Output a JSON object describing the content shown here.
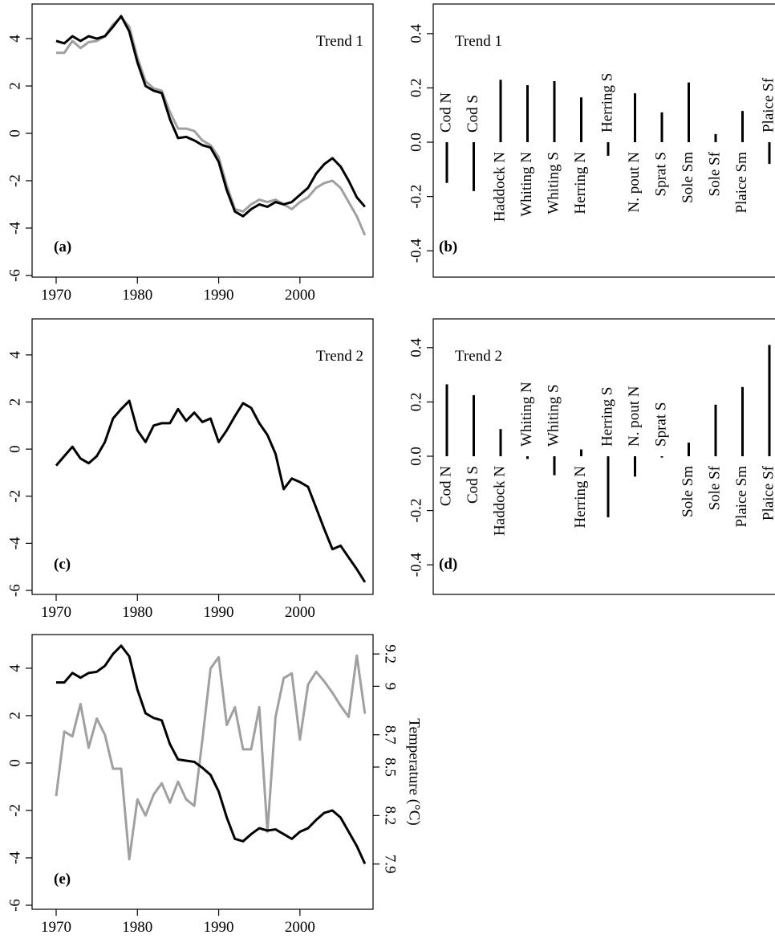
{
  "chart_data": [
    {
      "type": "line",
      "annotation": "Trend 1",
      "panel_label": "(a)",
      "x": [
        1970,
        1971,
        1972,
        1973,
        1974,
        1975,
        1976,
        1977,
        1978,
        1979,
        1980,
        1981,
        1982,
        1983,
        1984,
        1985,
        1986,
        1987,
        1988,
        1989,
        1990,
        1991,
        1992,
        1993,
        1994,
        1995,
        1996,
        1997,
        1998,
        1999,
        2000,
        2001,
        2002,
        2003,
        2004,
        2005,
        2006,
        2007,
        2008
      ],
      "series": [
        {
          "color": "#a0a0a0",
          "values": [
            3.4,
            3.4,
            3.9,
            3.6,
            3.85,
            3.9,
            4.1,
            4.6,
            4.9,
            4.5,
            3.2,
            2.2,
            1.9,
            1.8,
            0.9,
            0.2,
            0.2,
            0.1,
            -0.3,
            -0.5,
            -1.0,
            -2.2,
            -3.2,
            -3.3,
            -3.0,
            -2.8,
            -2.9,
            -2.8,
            -3.0,
            -3.2,
            -2.9,
            -2.7,
            -2.3,
            -2.1,
            -2.0,
            -2.3,
            -2.9,
            -3.5,
            -4.3
          ]
        },
        {
          "color": "#000000",
          "values": [
            3.9,
            3.8,
            4.1,
            3.9,
            4.1,
            4.0,
            4.1,
            4.5,
            4.95,
            4.3,
            3.0,
            2.0,
            1.8,
            1.7,
            0.6,
            -0.2,
            -0.15,
            -0.3,
            -0.5,
            -0.6,
            -1.2,
            -2.4,
            -3.3,
            -3.5,
            -3.2,
            -3.0,
            -3.1,
            -2.9,
            -3.0,
            -2.9,
            -2.6,
            -2.3,
            -1.7,
            -1.3,
            -1.05,
            -1.4,
            -2.0,
            -2.7,
            -3.1
          ]
        }
      ],
      "xlim": [
        1967.04,
        2009.0
      ],
      "xticks": [
        1970,
        1980,
        1990,
        2000
      ],
      "ylim": [
        -6.07,
        5.46
      ],
      "yticks": [
        4,
        2,
        0,
        -2,
        -4,
        -6
      ]
    },
    {
      "type": "bar",
      "annotation": "Trend 1",
      "panel_label": "(b)",
      "color": "#000000",
      "categories": [
        "Cod N",
        "Cod S",
        "Haddock N",
        "Whiting N",
        "Whiting S",
        "Herring N",
        "Herring S",
        "N. pout N",
        "Sprat S",
        "Sole Sm",
        "Sole Sf",
        "Plaice Sm",
        "Plaice Sf"
      ],
      "values": [
        -0.15,
        -0.18,
        0.23,
        0.21,
        0.225,
        0.165,
        -0.05,
        0.18,
        0.11,
        0.22,
        0.03,
        0.115,
        -0.08
      ],
      "ylim": [
        -0.497,
        0.509
      ],
      "yticks": [
        0.4,
        0.2,
        {
          "value": 0,
          "label": "0.0"
        },
        -0.2,
        -0.4
      ]
    },
    {
      "type": "line",
      "annotation": "Trend 2",
      "panel_label": "(c)",
      "x": [
        1970,
        1971,
        1972,
        1973,
        1974,
        1975,
        1976,
        1977,
        1978,
        1979,
        1980,
        1981,
        1982,
        1983,
        1984,
        1985,
        1986,
        1987,
        1988,
        1989,
        1990,
        1991,
        1992,
        1993,
        1994,
        1995,
        1996,
        1997,
        1998,
        1999,
        2000,
        2001,
        2002,
        2003,
        2004,
        2005,
        2006,
        2007,
        2008
      ],
      "series": [
        {
          "color": "#000000",
          "values": [
            -0.7,
            -0.3,
            0.1,
            -0.4,
            -0.6,
            -0.3,
            0.3,
            1.3,
            1.7,
            2.05,
            0.8,
            0.3,
            1.0,
            1.1,
            1.1,
            1.7,
            1.2,
            1.55,
            1.15,
            1.3,
            0.3,
            0.8,
            1.4,
            1.95,
            1.75,
            1.1,
            0.6,
            -0.2,
            -1.7,
            -1.25,
            -1.4,
            -1.6,
            -2.5,
            -3.4,
            -4.25,
            -4.1,
            -4.6,
            -5.1,
            -5.65
          ]
        }
      ],
      "xlim": [
        1967.04,
        2009.0
      ],
      "xticks": [
        1970,
        1980,
        1990,
        2000
      ],
      "ylim": [
        -6.17,
        5.53
      ],
      "yticks": [
        4,
        2,
        0,
        -2,
        -4,
        -6
      ]
    },
    {
      "type": "bar",
      "annotation": "Trend 2",
      "panel_label": "(d)",
      "color": "#000000",
      "categories": [
        "Cod N",
        "Cod S",
        "Haddock N",
        "Whiting N",
        "Whiting S",
        "Herring N",
        "Herring S",
        "N. pout N",
        "Sprat S",
        "Sole Sm",
        "Sole Sf",
        "Plaice Sm",
        "Plaice Sf"
      ],
      "values": [
        0.265,
        0.225,
        0.1,
        -0.01,
        -0.07,
        0.025,
        -0.225,
        -0.075,
        -0.005,
        0.05,
        0.19,
        0.255,
        0.41
      ],
      "ylim": [
        -0.509,
        0.506
      ],
      "yticks": [
        0.4,
        0.2,
        {
          "value": 0,
          "label": "0.0"
        },
        -0.2,
        -0.4
      ]
    },
    {
      "type": "line",
      "panel_label": "(e)",
      "y2label": "Temperature (°C)",
      "x": [
        1970,
        1971,
        1972,
        1973,
        1974,
        1975,
        1976,
        1977,
        1978,
        1979,
        1980,
        1981,
        1982,
        1983,
        1984,
        1985,
        1986,
        1987,
        1988,
        1989,
        1990,
        1991,
        1992,
        1993,
        1994,
        1995,
        1996,
        1997,
        1998,
        1999,
        2000,
        2001,
        2002,
        2003,
        2004,
        2005,
        2006,
        2007,
        2008
      ],
      "series": [
        {
          "color": "#a0a0a0",
          "axis": "y2",
          "values": [
            8.32,
            8.72,
            8.69,
            8.89,
            8.62,
            8.8,
            8.7,
            8.49,
            8.49,
            7.93,
            8.3,
            8.2,
            8.33,
            8.4,
            8.28,
            8.41,
            8.3,
            8.26,
            8.67,
            9.11,
            9.18,
            8.76,
            8.87,
            8.61,
            8.61,
            8.87,
            8.1,
            8.81,
            9.05,
            9.08,
            8.67,
            9.01,
            9.09,
            9.03,
            8.96,
            8.88,
            8.81,
            9.19,
            8.83
          ]
        },
        {
          "color": "#000000",
          "values": [
            3.4,
            3.4,
            3.8,
            3.6,
            3.8,
            3.85,
            4.1,
            4.6,
            4.95,
            4.5,
            3.1,
            2.1,
            1.9,
            1.8,
            0.8,
            0.15,
            0.1,
            0.05,
            -0.2,
            -0.5,
            -1.2,
            -2.3,
            -3.2,
            -3.3,
            -3.0,
            -2.75,
            -2.85,
            -2.8,
            -3.0,
            -3.2,
            -2.9,
            -2.75,
            -2.4,
            -2.1,
            -2.0,
            -2.3,
            -2.9,
            -3.5,
            -4.25
          ]
        }
      ],
      "xlim": [
        1967.04,
        2009.0
      ],
      "xticks": [
        1970,
        1980,
        1990,
        2000
      ],
      "ylim": [
        -6.17,
        5.42
      ],
      "yticks": [
        4,
        2,
        0,
        -2,
        -4,
        -6
      ],
      "y2lim": [
        7.62,
        9.32
      ],
      "y2ticks": [
        9.2,
        9,
        8.7,
        8.5,
        8.2,
        7.9
      ]
    }
  ]
}
